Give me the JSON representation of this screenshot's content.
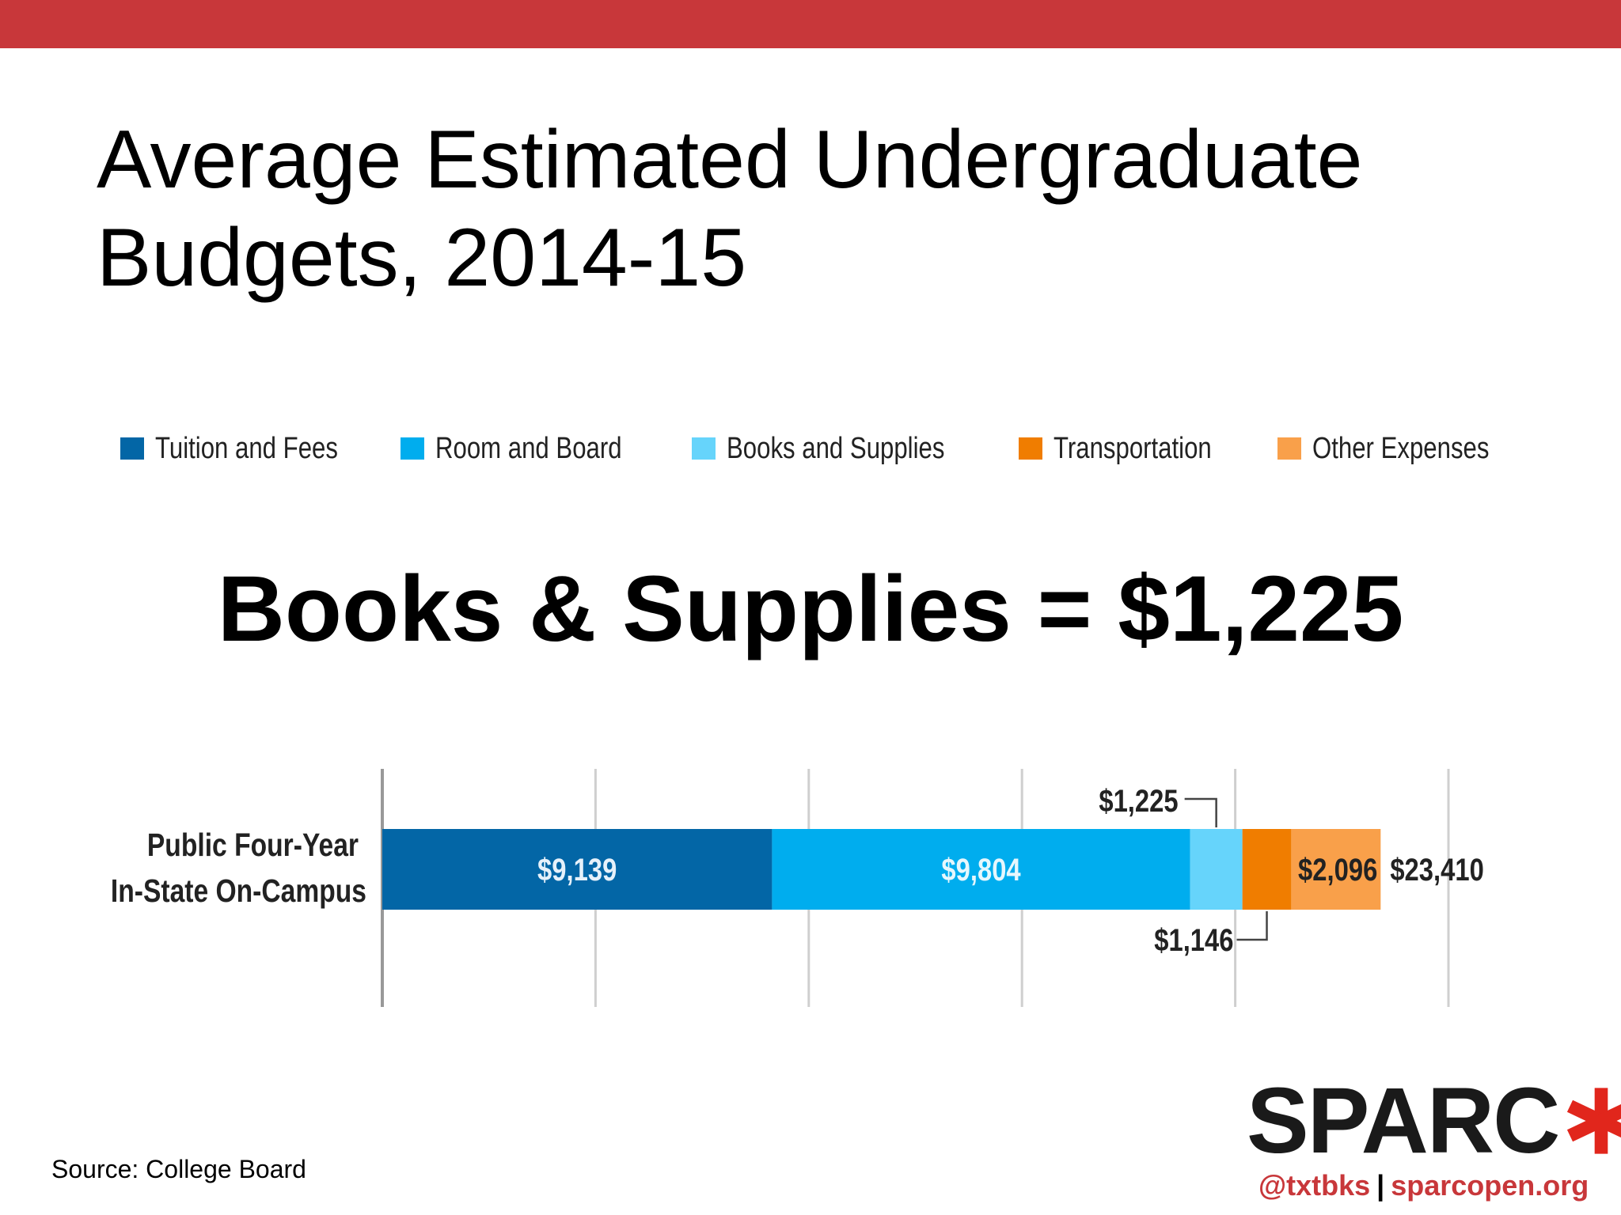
{
  "header": {
    "bar_color": "#c8373a"
  },
  "title": {
    "line1": "Average Estimated Undergraduate",
    "line2": "Budgets, 2014-15"
  },
  "callout": "Books & Supplies = $1,225",
  "chart_data": {
    "type": "bar",
    "orientation": "horizontal",
    "stacked": true,
    "categories": [
      "Public Four-Year In-State On-Campus"
    ],
    "category_label_lines": [
      "Public Four-Year",
      "In-State On-Campus"
    ],
    "series": [
      {
        "name": "Tuition and Fees",
        "values": [
          9139
        ],
        "label": "$9,139",
        "color": "#0366a6"
      },
      {
        "name": "Room and Board",
        "values": [
          9804
        ],
        "label": "$9,804",
        "color": "#00adee"
      },
      {
        "name": "Books and Supplies",
        "values": [
          1225
        ],
        "label": "$1,225",
        "color": "#66d4fb"
      },
      {
        "name": "Transportation",
        "values": [
          1146
        ],
        "label": "$1,146",
        "color": "#f07d00"
      },
      {
        "name": "Other Expenses",
        "values": [
          2096
        ],
        "label": "$2,096",
        "color": "#f9a04a"
      }
    ],
    "total": 23410,
    "total_label": "$23,410",
    "xlim": [
      0,
      25000
    ],
    "gridlines": [
      0,
      5000,
      10000,
      15000,
      20000,
      25000
    ],
    "legend_position": "top"
  },
  "source": "Source: College Board",
  "logo": {
    "text": "SPARC",
    "mark_color": "#e1261c"
  },
  "footer": {
    "twitter": "@txtbks",
    "separator": "|",
    "website": "sparcopen.org",
    "link_color": "#c8373a"
  }
}
